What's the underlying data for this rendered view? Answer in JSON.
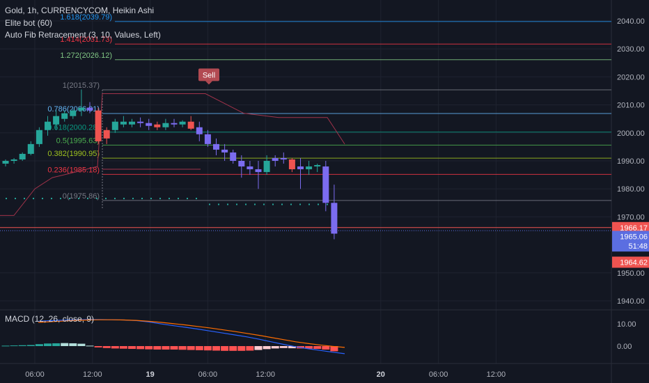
{
  "header": {
    "symbol_line": "Gold, 1h, CURRENCYCOM, Heikin Ashi",
    "indicator_1": "Elite bot (60)",
    "indicator_2": "Auto Fib Retracement (3, 10, Values, Left)"
  },
  "macd": {
    "label": "MACD (12, 26, close, 9)"
  },
  "colors": {
    "background": "#131722",
    "up_candle": "#26a69a",
    "down_candle": "#ef5350",
    "blue_candle": "#7b6cf0",
    "macd_line": "#2962ff",
    "signal_line": "#ff6d00",
    "sell_badge": "#b24a52"
  },
  "chart_data": {
    "type": "candlestick",
    "price_axis": {
      "ticks": [
        "2040.00",
        "2030.00",
        "2020.00",
        "2010.00",
        "2000.00",
        "1990.00",
        "1980.00",
        "1970.00",
        "1950.00",
        "1940.00"
      ],
      "range": [
        1935,
        2045
      ]
    },
    "macd_axis": {
      "ticks": [
        "10.00",
        "0.00"
      ]
    },
    "time_axis": {
      "ticks": [
        {
          "label": "06:00",
          "bold": false,
          "t": 0
        },
        {
          "label": "12:00",
          "bold": false,
          "t": 6
        },
        {
          "label": "19",
          "bold": true,
          "t": 12
        },
        {
          "label": "06:00",
          "bold": false,
          "t": 18
        },
        {
          "label": "12:00",
          "bold": false,
          "t": 24
        },
        {
          "label": "20",
          "bold": true,
          "t": 36
        },
        {
          "label": "06:00",
          "bold": false,
          "t": 42
        },
        {
          "label": "12:00",
          "bold": false,
          "t": 48
        }
      ]
    },
    "price_badges": [
      {
        "label": "1966.17",
        "price": 1966.17,
        "color": "#ef5350"
      },
      {
        "label": "1965.06",
        "price": 1963.0,
        "color": "#5b6ee1"
      },
      {
        "label": "51:48",
        "price": 1959.6,
        "color": "#5b6ee1"
      },
      {
        "label": "1964.62",
        "price": 1953.8,
        "color": "#ef5350"
      }
    ],
    "fib_levels": [
      {
        "label": "1.618(2039.79)",
        "price": 2039.79,
        "color": "#2196f3"
      },
      {
        "label": "1.414(2031.73)",
        "price": 2031.73,
        "color": "#f23645"
      },
      {
        "label": "1.272(2026.12)",
        "price": 2026.12,
        "color": "#81c784"
      },
      {
        "label": "1(2015.37)",
        "price": 2015.37,
        "color": "#787b86"
      },
      {
        "label": "0.786(2006.91)",
        "price": 2006.91,
        "color": "#64b5f6"
      },
      {
        "label": "0.618(2000.28)",
        "price": 2000.28,
        "color": "#089981"
      },
      {
        "label": "0.5(1995.63)",
        "price": 1995.63,
        "color": "#4caf50"
      },
      {
        "label": "0.382(1990.95)",
        "price": 1990.95,
        "color": "#9fc31f"
      },
      {
        "label": "0.236(1985.18)",
        "price": 1985.18,
        "color": "#f23645"
      },
      {
        "label": "0(1975.86)",
        "price": 1975.86,
        "color": "#787b86"
      }
    ],
    "sell_label": "Sell",
    "candles": [
      [
        1989,
        1990.5,
        1988,
        1990,
        "up"
      ],
      [
        1990,
        1991,
        1989,
        1990.5,
        "up"
      ],
      [
        1990.5,
        1993,
        1990,
        1992.5,
        "up"
      ],
      [
        1992.5,
        1997,
        1992,
        1996,
        "up"
      ],
      [
        1996,
        2002,
        1995,
        2001,
        "up"
      ],
      [
        2001,
        2006,
        1999,
        2004,
        "up"
      ],
      [
        2003,
        2008,
        2001,
        2006,
        "up"
      ],
      [
        2005,
        2008,
        2004,
        2007,
        "up"
      ],
      [
        2006,
        2008.5,
        2005,
        2008,
        "up"
      ],
      [
        2008,
        2015.5,
        2006,
        2009,
        "up"
      ],
      [
        2009,
        2011,
        2007,
        2008,
        "blue"
      ],
      [
        2008,
        2009,
        1996,
        1997,
        "down"
      ],
      [
        1998,
        2002,
        1996,
        2001,
        "down"
      ],
      [
        2001,
        2005,
        2000,
        2004,
        "up"
      ],
      [
        2004,
        2006,
        2002,
        2003,
        "up"
      ],
      [
        2003,
        2005,
        2002,
        2004,
        "up"
      ],
      [
        2004,
        2005.5,
        2002,
        2003.5,
        "blue"
      ],
      [
        2003.5,
        2005,
        2001,
        2002.5,
        "blue"
      ],
      [
        2003,
        2004,
        2001,
        2002,
        "down"
      ],
      [
        2002,
        2005,
        2001,
        2003.5,
        "up"
      ],
      [
        2003.5,
        2005,
        2002,
        2003,
        "blue"
      ],
      [
        2003,
        2004.5,
        2002,
        2004,
        "up"
      ],
      [
        2004,
        2006,
        2001,
        2001.5,
        "down"
      ],
      [
        2002,
        2004,
        1997,
        1999.5,
        "blue"
      ],
      [
        1999.5,
        2001,
        1995,
        1996,
        "blue"
      ],
      [
        1996,
        1998,
        1992,
        1994,
        "blue"
      ],
      [
        1994,
        1996,
        1990,
        1993,
        "blue"
      ],
      [
        1993,
        1994,
        1989,
        1990,
        "blue"
      ],
      [
        1990,
        1992,
        1984,
        1988,
        "blue"
      ],
      [
        1988,
        1990,
        1985,
        1987,
        "blue"
      ],
      [
        1987,
        1990,
        1980,
        1986,
        "blue"
      ],
      [
        1986,
        1992,
        1985,
        1990,
        "up"
      ],
      [
        1990,
        1992,
        1988,
        1991,
        "blue"
      ],
      [
        1991,
        1993,
        1989,
        1990.5,
        "blue"
      ],
      [
        1990.5,
        1991,
        1986,
        1987,
        "down"
      ],
      [
        1988,
        1991,
        1980,
        1987,
        "blue"
      ],
      [
        1987,
        1990,
        1985,
        1988,
        "up"
      ],
      [
        1988,
        1989,
        1986,
        1988.5,
        "up"
      ],
      [
        1988,
        1990,
        1972,
        1975,
        "blue"
      ],
      [
        1975,
        1981.5,
        1962,
        1964,
        "blue"
      ]
    ],
    "macd_hist": [
      0.2,
      0.3,
      0.4,
      0.5,
      0.9,
      1.2,
      1.3,
      1.4,
      1.3,
      1.1,
      0.2,
      -0.6,
      -0.9,
      -1.1,
      -1.2,
      -1.3,
      -1.4,
      -1.5,
      -1.6,
      -1.6,
      -1.6,
      -1.7,
      -1.8,
      -1.9,
      -2.0,
      -2.1,
      -2.2,
      -2.2,
      -2.2,
      -2.1,
      -1.8,
      -1.4,
      -1.1,
      -0.9,
      -1.0,
      -1.1,
      -1.2,
      -1.3,
      -1.6,
      -2.4
    ],
    "macd_line": [
      11.5,
      11.8,
      12.0,
      12.2,
      12.3,
      12.3,
      12.2,
      12.1,
      11.8,
      11.2,
      10.3,
      9.5,
      8.7,
      7.9,
      7.0,
      6.1,
      5.2,
      4.3,
      3.2,
      2.0,
      0.8,
      -0.3,
      -1.2,
      -2.0,
      -2.8,
      -3.5
    ],
    "signal_line": [
      11.0,
      11.3,
      11.6,
      11.9,
      12.1,
      12.2,
      12.2,
      12.1,
      11.9,
      11.5,
      11.0,
      10.4,
      9.8,
      9.1,
      8.4,
      7.6,
      6.8,
      5.9,
      5.0,
      4.0,
      3.0,
      2.0,
      1.2,
      0.5,
      -0.1,
      -0.6
    ]
  }
}
